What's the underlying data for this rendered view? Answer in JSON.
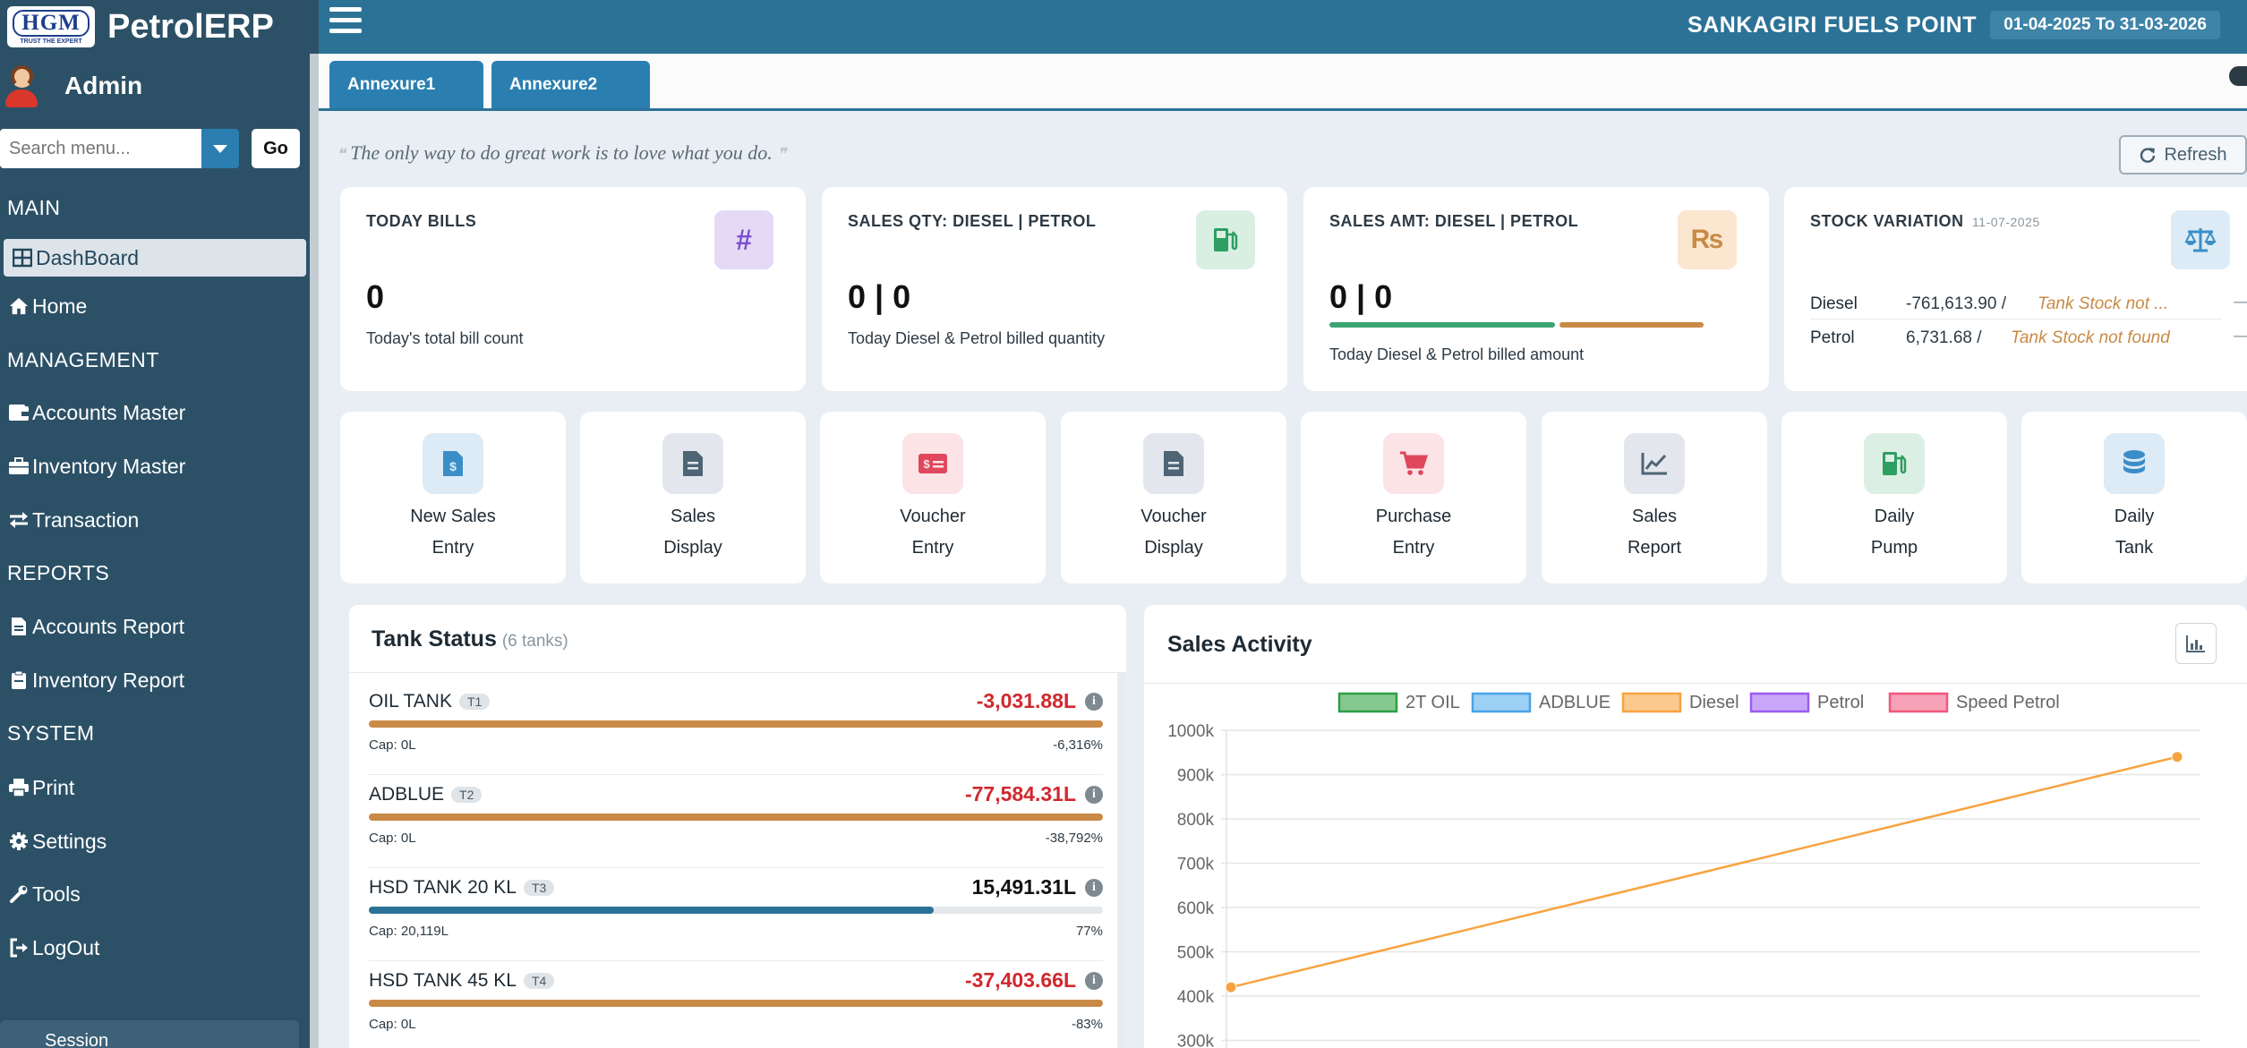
{
  "app": {
    "title": "PetrolERP",
    "logo_text": "HGM",
    "logo_tagline": "TRUST THE EXPERT"
  },
  "user": {
    "name": "Admin"
  },
  "search": {
    "placeholder": "Search menu...",
    "go_label": "Go"
  },
  "sidebar": {
    "sections": [
      {
        "heading": "MAIN",
        "items": [
          {
            "label": "DashBoard",
            "icon": "grid-icon",
            "active": true
          },
          {
            "label": "Home",
            "icon": "home-icon"
          }
        ]
      },
      {
        "heading": "MANAGEMENT",
        "items": [
          {
            "label": "Accounts Master",
            "icon": "wallet-icon"
          },
          {
            "label": "Inventory Master",
            "icon": "briefcase-icon"
          },
          {
            "label": "Transaction",
            "icon": "exchange-icon"
          }
        ]
      },
      {
        "heading": "REPORTS",
        "items": [
          {
            "label": "Accounts Report",
            "icon": "file-icon"
          },
          {
            "label": "Inventory Report",
            "icon": "clipboard-icon"
          }
        ]
      },
      {
        "heading": "SYSTEM",
        "items": [
          {
            "label": "Print",
            "icon": "printer-icon"
          },
          {
            "label": "Settings",
            "icon": "gear-icon"
          },
          {
            "label": "Tools",
            "icon": "wrench-icon"
          },
          {
            "label": "LogOut",
            "icon": "logout-icon"
          }
        ]
      }
    ],
    "session_label": "Session"
  },
  "topbar": {
    "company": "SANKAGIRI FUELS POINT",
    "financial_year": "01-04-2025 To 31-03-2026"
  },
  "tabs": [
    {
      "label": "Annexure1"
    },
    {
      "label": "Annexure2"
    }
  ],
  "quote": "The only way to do great work is to love what you do.",
  "refresh_label": "Refresh",
  "stats": {
    "today_bills": {
      "title": "TODAY BILLS",
      "value": "0",
      "sub": "Today's total bill count",
      "badge": "#"
    },
    "sales_qty": {
      "title": "SALES QTY: DIESEL | PETROL",
      "value": "0 | 0",
      "sub": "Today Diesel & Petrol billed quantity"
    },
    "sales_amt": {
      "title": "SALES AMT: DIESEL | PETROL",
      "value": "0 | 0",
      "sub": "Today Diesel & Petrol billed amount",
      "badge": "₨"
    },
    "stock_variation": {
      "title": "STOCK VARIATION",
      "date": "11-07-2025",
      "rows": [
        {
          "product": "Diesel",
          "value": "-761,613.90 /",
          "note": "Tank Stock not ...",
          "dash": "—"
        },
        {
          "product": "Petrol",
          "value": "6,731.68 /",
          "note": "Tank Stock not found",
          "dash": "—"
        }
      ]
    }
  },
  "quick_links": [
    {
      "line1": "New Sales",
      "line2": "Entry",
      "icon": "dollar-file-icon",
      "bg": "#dcebf5",
      "fg": "#3a8ec7"
    },
    {
      "line1": "Sales",
      "line2": "Display",
      "icon": "document-icon",
      "bg": "#e3e7ed",
      "fg": "#4f6475"
    },
    {
      "line1": "Voucher",
      "line2": "Entry",
      "icon": "money-bill-icon",
      "bg": "#fbe3e6",
      "fg": "#e0475c"
    },
    {
      "line1": "Voucher",
      "line2": "Display",
      "icon": "document-icon",
      "bg": "#e3e7ed",
      "fg": "#4f6475"
    },
    {
      "line1": "Purchase",
      "line2": "Entry",
      "icon": "cart-icon",
      "bg": "#fbe3e6",
      "fg": "#e0475c"
    },
    {
      "line1": "Sales",
      "line2": "Report",
      "icon": "line-chart-icon",
      "bg": "#e3e7ed",
      "fg": "#4f6475"
    },
    {
      "line1": "Daily",
      "line2": "Pump",
      "icon": "fuel-pump-icon",
      "bg": "#dcefe4",
      "fg": "#2e9e62"
    },
    {
      "line1": "Daily",
      "line2": "Tank",
      "icon": "database-icon",
      "bg": "#dcebf5",
      "fg": "#3a8ec7"
    }
  ],
  "tank_status": {
    "title": "Tank Status",
    "count_label": "(6 tanks)",
    "tanks": [
      {
        "name": "OIL TANK",
        "code": "T1",
        "value": "-3,031.88L",
        "negative": true,
        "cap": "Cap: 0L",
        "pct": "-6,316%",
        "fill_fraction": 1.0,
        "bar_color": "#c98a46"
      },
      {
        "name": "ADBLUE",
        "code": "T2",
        "value": "-77,584.31L",
        "negative": true,
        "cap": "Cap: 0L",
        "pct": "-38,792%",
        "fill_fraction": 1.0,
        "bar_color": "#c98a46"
      },
      {
        "name": "HSD TANK 20 KL",
        "code": "T3",
        "value": "15,491.31L",
        "negative": false,
        "cap": "Cap: 20,119L",
        "pct": "77%",
        "fill_fraction": 0.77,
        "bar_color": "#2c7297"
      },
      {
        "name": "HSD TANK 45 KL",
        "code": "T4",
        "value": "-37,403.66L",
        "negative": true,
        "cap": "Cap: 0L",
        "pct": "-83%",
        "fill_fraction": 1.0,
        "bar_color": "#c98a46"
      }
    ]
  },
  "sales_activity": {
    "title": "Sales Activity"
  },
  "chart_data": {
    "type": "line",
    "legend_position": "top",
    "series": [
      {
        "name": "2T OIL",
        "color": "#2e9e45",
        "fill": "#86c98f",
        "values": []
      },
      {
        "name": "ADBLUE",
        "color": "#4aa3e8",
        "fill": "#9cd0f5",
        "values": []
      },
      {
        "name": "Diesel",
        "color": "#f7a340",
        "fill": "#fcc98d",
        "values": [
          420000,
          940000
        ]
      },
      {
        "name": "Petrol",
        "color": "#9b5cf0",
        "fill": "#caa6f8",
        "values": []
      },
      {
        "name": "Speed Petrol",
        "color": "#f0587b",
        "fill": "#f7a1b6",
        "values": []
      }
    ],
    "y_ticks": [
      "1000k",
      "900k",
      "800k",
      "700k",
      "600k",
      "500k",
      "400k",
      "300k"
    ],
    "ylim": [
      300000,
      1000000
    ],
    "grid": true
  }
}
